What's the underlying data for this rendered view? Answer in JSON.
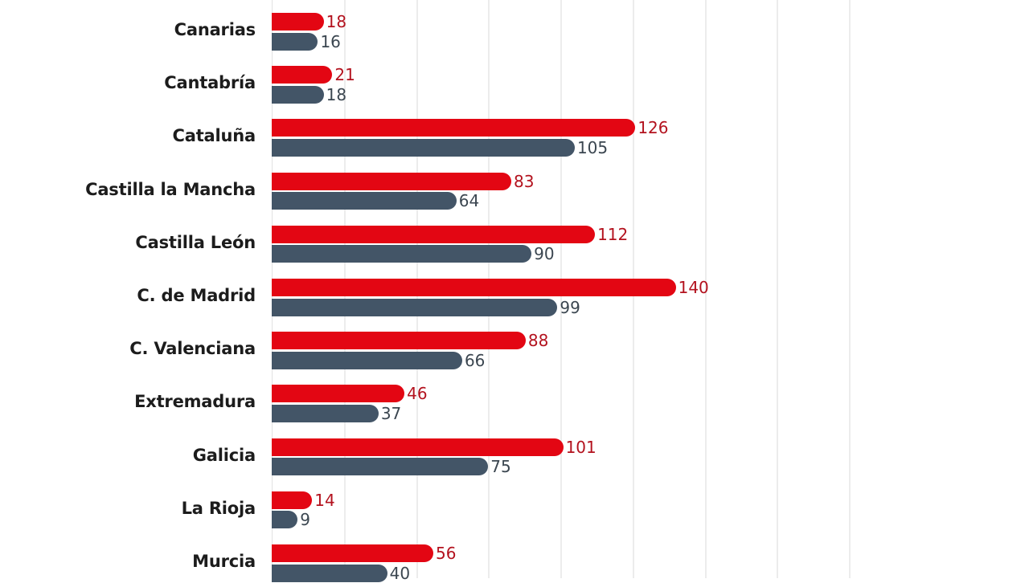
{
  "chart_data": {
    "type": "bar",
    "orientation": "horizontal",
    "title": "",
    "xlabel": "",
    "ylabel": "",
    "xlim": [
      0,
      200
    ],
    "grid": true,
    "grid_step": 25,
    "legend": null,
    "categories": [
      "Canarias",
      "Cantabría",
      "Cataluña",
      "Castilla la Mancha",
      "Castilla León",
      "C. de Madrid",
      "C. Valenciana",
      "Extremadura",
      "Galicia",
      "La Rioja",
      "Murcia"
    ],
    "series": [
      {
        "name": "series_red",
        "color": "#e30613",
        "values": [
          18,
          21,
          126,
          83,
          112,
          140,
          88,
          46,
          101,
          14,
          56
        ]
      },
      {
        "name": "series_slate",
        "color": "#435567",
        "values": [
          16,
          18,
          105,
          64,
          90,
          99,
          66,
          37,
          75,
          9,
          40
        ]
      }
    ]
  },
  "rows": [
    {
      "label": "Canarias",
      "v0": "18",
      "v1": "16"
    },
    {
      "label": "Cantabría",
      "v0": "21",
      "v1": "18"
    },
    {
      "label": "Cataluña",
      "v0": "126",
      "v1": "105"
    },
    {
      "label": "Castilla la Mancha",
      "v0": "83",
      "v1": "64"
    },
    {
      "label": "Castilla León",
      "v0": "112",
      "v1": "90"
    },
    {
      "label": "C. de Madrid",
      "v0": "140",
      "v1": "99"
    },
    {
      "label": "C. Valenciana",
      "v0": "88",
      "v1": "66"
    },
    {
      "label": "Extremadura",
      "v0": "46",
      "v1": "37"
    },
    {
      "label": "Galicia",
      "v0": "101",
      "v1": "75"
    },
    {
      "label": "La Rioja",
      "v0": "14",
      "v1": "9"
    },
    {
      "label": "Murcia",
      "v0": "56",
      "v1": "40"
    }
  ]
}
